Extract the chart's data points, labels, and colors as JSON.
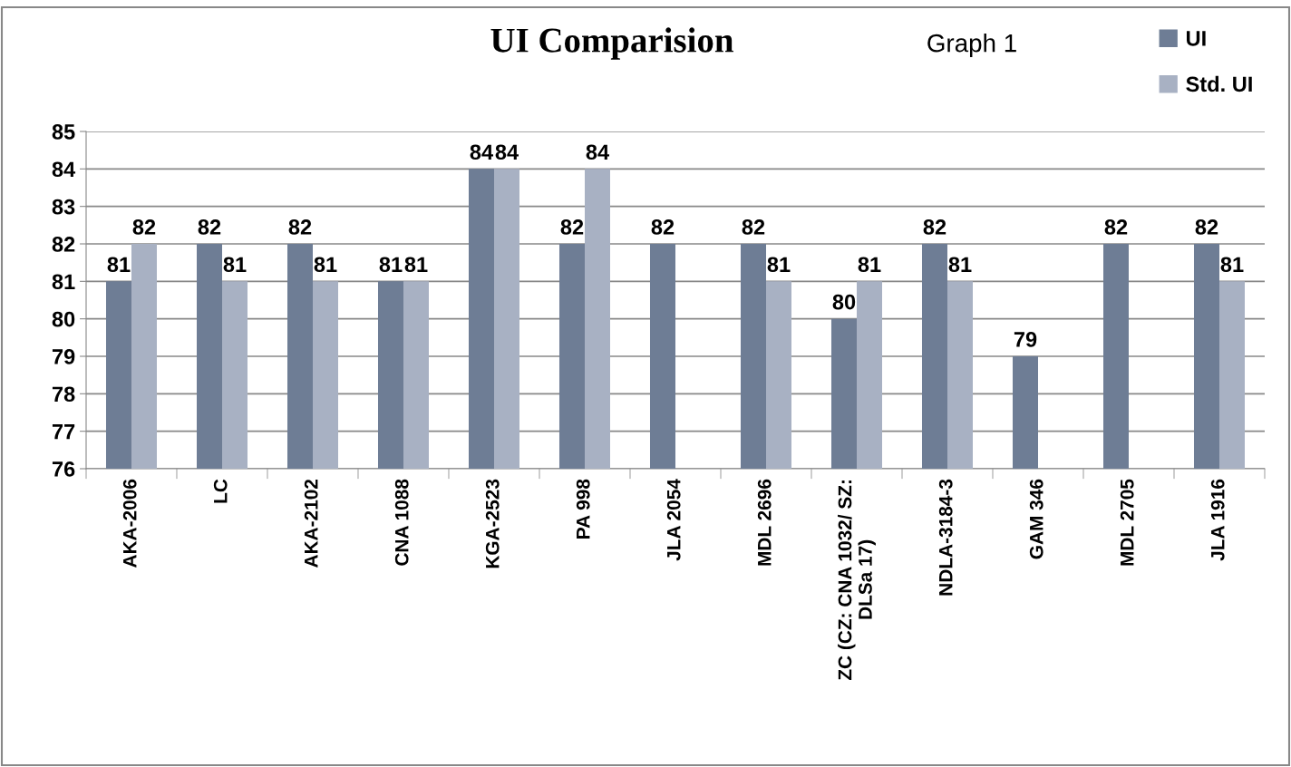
{
  "chart_data": {
    "type": "bar",
    "title": "UI Comparision",
    "annotations": [
      "Graph 1"
    ],
    "categories": [
      "AKA-2006",
      "LC",
      "AKA-2102",
      "CNA 1088",
      "KGA-2523",
      "PA 998",
      "JLA 2054",
      "MDL 2696",
      "ZC (CZ: CNA 1032/ SZ:\nDLSa 17)",
      "NDLA-3184-3",
      "GAM 346",
      "MDL 2705",
      "JLA 1916"
    ],
    "series": [
      {
        "name": "UI",
        "color": "#6e7d95",
        "values": [
          81,
          82,
          82,
          81,
          84,
          82,
          82,
          82,
          80,
          82,
          79,
          82,
          82
        ]
      },
      {
        "name": "Std. UI",
        "color": "#a8b1c3",
        "values": [
          82,
          81,
          81,
          81,
          84,
          84,
          null,
          81,
          81,
          81,
          null,
          null,
          81
        ]
      }
    ],
    "ylim": [
      76,
      85
    ],
    "yticks": [
      76,
      77,
      78,
      79,
      80,
      81,
      82,
      83,
      84,
      85
    ],
    "grid": "y",
    "legend": "top right",
    "data_labels": true
  }
}
